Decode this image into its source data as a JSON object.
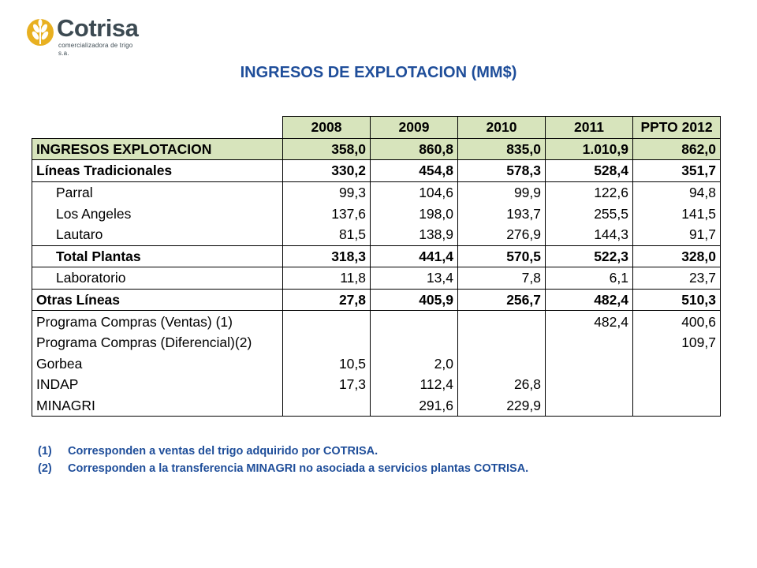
{
  "logo": {
    "name": "Cotrisa",
    "tagline": "comercializadora de trigo s.a."
  },
  "title": "INGRESOS DE EXPLOTACION (MM$)",
  "table": {
    "years": [
      "2008",
      "2009",
      "2010",
      "2011",
      "PPTO 2012"
    ],
    "rows": [
      {
        "label": "INGRESOS EXPLOTACION",
        "values": [
          "358,0",
          "860,8",
          "835,0",
          "1.010,9",
          "862,0"
        ]
      },
      {
        "label": "Líneas Tradicionales",
        "values": [
          "330,2",
          "454,8",
          "578,3",
          "528,4",
          "351,7"
        ]
      },
      {
        "label": "Parral",
        "values": [
          "99,3",
          "104,6",
          "99,9",
          "122,6",
          "94,8"
        ]
      },
      {
        "label": "Los Angeles",
        "values": [
          "137,6",
          "198,0",
          "193,7",
          "255,5",
          "141,5"
        ]
      },
      {
        "label": "Lautaro",
        "values": [
          "81,5",
          "138,9",
          "276,9",
          "144,3",
          "91,7"
        ]
      },
      {
        "label": "Total Plantas",
        "values": [
          "318,3",
          "441,4",
          "570,5",
          "522,3",
          "328,0"
        ]
      },
      {
        "label": "Laboratorio",
        "values": [
          "11,8",
          "13,4",
          "7,8",
          "6,1",
          "23,7"
        ]
      },
      {
        "label": "Otras Líneas",
        "values": [
          "27,8",
          "405,9",
          "256,7",
          "482,4",
          "510,3"
        ]
      },
      {
        "label": "Programa Compras (Ventas) (1)",
        "values": [
          "",
          "",
          "",
          "482,4",
          "400,6"
        ]
      },
      {
        "label": "Programa Compras (Diferencial)(2)",
        "values": [
          "",
          "",
          "",
          "",
          "109,7"
        ]
      },
      {
        "label": "Gorbea",
        "values": [
          "10,5",
          "2,0",
          "",
          "",
          ""
        ]
      },
      {
        "label": "INDAP",
        "values": [
          "17,3",
          "112,4",
          "26,8",
          "",
          ""
        ]
      },
      {
        "label": "MINAGRI",
        "values": [
          "",
          "291,6",
          "229,9",
          "",
          ""
        ]
      }
    ]
  },
  "notes": [
    {
      "num": "(1)",
      "text": "Corresponden a ventas del trigo adquirido por COTRISA."
    },
    {
      "num": "(2)",
      "text": "Corresponden a la transferencia MINAGRI no asociada a servicios plantas COTRISA."
    }
  ],
  "colors": {
    "accent": "#1f4e9a",
    "highlight": "#d7e4bc",
    "logo_gold": "#e8b021",
    "logo_text": "#3c4a52"
  }
}
